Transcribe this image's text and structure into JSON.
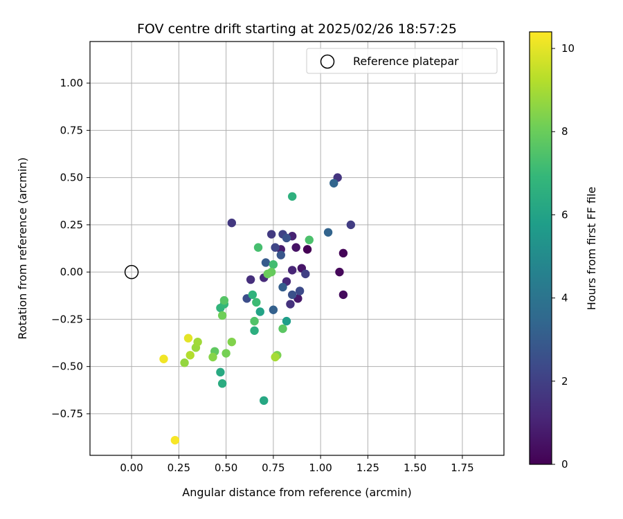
{
  "chart_data": {
    "type": "scatter",
    "title": "FOV centre drift starting at 2025/02/26 18:57:25",
    "xlabel": "Angular distance from reference (arcmin)",
    "ylabel": "Rotation from reference (arcmin)",
    "xlim": [
      -0.22,
      1.97
    ],
    "ylim": [
      -0.97,
      1.22
    ],
    "x_ticks": [
      0.0,
      0.25,
      0.5,
      0.75,
      1.0,
      1.25,
      1.5,
      1.75
    ],
    "x_tick_labels": [
      "0.00",
      "0.25",
      "0.50",
      "0.75",
      "1.00",
      "1.25",
      "1.50",
      "1.75"
    ],
    "y_ticks": [
      -0.75,
      -0.5,
      -0.25,
      0.0,
      0.25,
      0.5,
      0.75,
      1.0
    ],
    "y_tick_labels": [
      "−0.75",
      "−0.50",
      "−0.25",
      "0.00",
      "0.25",
      "0.50",
      "0.75",
      "1.00"
    ],
    "grid": true,
    "legend": {
      "placement": "top-right",
      "entries": [
        "Reference platepar"
      ]
    },
    "reference_marker": {
      "x": 0.0,
      "y": 0.0,
      "label": "Reference platepar"
    },
    "colorbar": {
      "label": "Hours from first FF file",
      "range": [
        0,
        10.4
      ],
      "ticks": [
        0,
        2,
        4,
        6,
        8,
        10
      ],
      "tick_labels": [
        "0",
        "2",
        "4",
        "6",
        "8",
        "10"
      ],
      "colormap": "viridis",
      "colors": [
        "#440154",
        "#482878",
        "#3e4989",
        "#31688e",
        "#26828e",
        "#1f9e89",
        "#35b779",
        "#6ece58",
        "#b5de2b",
        "#fde725"
      ]
    },
    "points": [
      {
        "x": 0.93,
        "y": 0.12,
        "h": 0.0
      },
      {
        "x": 1.12,
        "y": 0.1,
        "h": 0.1
      },
      {
        "x": 1.1,
        "y": 0.0,
        "h": 0.2
      },
      {
        "x": 1.12,
        "y": -0.12,
        "h": 0.3
      },
      {
        "x": 0.87,
        "y": 0.13,
        "h": 0.5
      },
      {
        "x": 0.9,
        "y": 0.02,
        "h": 0.6
      },
      {
        "x": 0.88,
        "y": -0.14,
        "h": 0.7
      },
      {
        "x": 0.79,
        "y": 0.12,
        "h": 0.8
      },
      {
        "x": 0.85,
        "y": 0.19,
        "h": 1.0
      },
      {
        "x": 0.85,
        "y": 0.01,
        "h": 1.1
      },
      {
        "x": 0.82,
        "y": -0.05,
        "h": 1.2
      },
      {
        "x": 0.7,
        "y": -0.03,
        "h": 1.3
      },
      {
        "x": 0.63,
        "y": -0.04,
        "h": 1.4
      },
      {
        "x": 0.84,
        "y": -0.17,
        "h": 1.5
      },
      {
        "x": 1.09,
        "y": 0.5,
        "h": 1.6
      },
      {
        "x": 0.53,
        "y": 0.26,
        "h": 1.7
      },
      {
        "x": 0.74,
        "y": 0.2,
        "h": 1.8
      },
      {
        "x": 1.16,
        "y": 0.25,
        "h": 1.9
      },
      {
        "x": 0.92,
        "y": -0.01,
        "h": 2.0
      },
      {
        "x": 0.8,
        "y": 0.2,
        "h": 2.1
      },
      {
        "x": 0.76,
        "y": 0.13,
        "h": 2.2
      },
      {
        "x": 0.89,
        "y": -0.1,
        "h": 2.4
      },
      {
        "x": 0.61,
        "y": -0.14,
        "h": 2.5
      },
      {
        "x": 0.85,
        "y": -0.12,
        "h": 2.6
      },
      {
        "x": 0.82,
        "y": 0.18,
        "h": 2.7
      },
      {
        "x": 0.79,
        "y": 0.09,
        "h": 2.8
      },
      {
        "x": 0.71,
        "y": 0.05,
        "h": 3.0
      },
      {
        "x": 0.8,
        "y": -0.08,
        "h": 3.1
      },
      {
        "x": 0.75,
        "y": -0.2,
        "h": 3.2
      },
      {
        "x": 1.04,
        "y": 0.21,
        "h": 3.3
      },
      {
        "x": 1.07,
        "y": 0.47,
        "h": 3.4
      },
      {
        "x": 0.82,
        "y": -0.26,
        "h": 5.8
      },
      {
        "x": 0.68,
        "y": -0.21,
        "h": 6.0
      },
      {
        "x": 0.7,
        "y": -0.68,
        "h": 6.2
      },
      {
        "x": 0.47,
        "y": -0.53,
        "h": 6.3
      },
      {
        "x": 0.48,
        "y": -0.59,
        "h": 6.4
      },
      {
        "x": 0.65,
        "y": -0.31,
        "h": 6.5
      },
      {
        "x": 0.85,
        "y": 0.4,
        "h": 6.6
      },
      {
        "x": 0.64,
        "y": -0.12,
        "h": 6.7
      },
      {
        "x": 0.47,
        "y": -0.19,
        "h": 6.8
      },
      {
        "x": 0.49,
        "y": -0.17,
        "h": 6.9
      },
      {
        "x": 0.66,
        "y": -0.16,
        "h": 7.1
      },
      {
        "x": 0.75,
        "y": 0.04,
        "h": 7.2
      },
      {
        "x": 0.67,
        "y": 0.13,
        "h": 7.3
      },
      {
        "x": 0.94,
        "y": 0.17,
        "h": 7.4
      },
      {
        "x": 0.65,
        "y": -0.26,
        "h": 7.5
      },
      {
        "x": 0.49,
        "y": -0.15,
        "h": 7.6
      },
      {
        "x": 0.8,
        "y": -0.3,
        "h": 7.7
      },
      {
        "x": 0.44,
        "y": -0.42,
        "h": 7.8
      },
      {
        "x": 0.74,
        "y": 0.0,
        "h": 7.9
      },
      {
        "x": 0.72,
        "y": -0.01,
        "h": 8.0
      },
      {
        "x": 0.48,
        "y": -0.23,
        "h": 8.1
      },
      {
        "x": 0.5,
        "y": -0.43,
        "h": 8.2
      },
      {
        "x": 0.77,
        "y": -0.44,
        "h": 8.3
      },
      {
        "x": 0.53,
        "y": -0.37,
        "h": 8.4
      },
      {
        "x": 0.43,
        "y": -0.45,
        "h": 8.5
      },
      {
        "x": 0.28,
        "y": -0.48,
        "h": 8.7
      },
      {
        "x": 0.34,
        "y": -0.4,
        "h": 8.8
      },
      {
        "x": 0.35,
        "y": -0.37,
        "h": 8.9
      },
      {
        "x": 0.76,
        "y": -0.45,
        "h": 9.0
      },
      {
        "x": 0.31,
        "y": -0.44,
        "h": 9.2
      },
      {
        "x": 0.3,
        "y": -0.35,
        "h": 10.0
      },
      {
        "x": 0.17,
        "y": -0.46,
        "h": 10.2
      },
      {
        "x": 0.23,
        "y": -0.89,
        "h": 10.3
      }
    ]
  }
}
